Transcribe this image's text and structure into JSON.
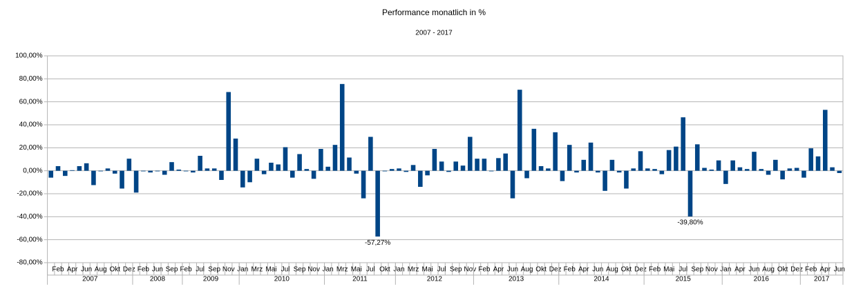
{
  "chart_data": {
    "type": "bar",
    "title": "Performance monatlich in %",
    "subtitle": "2007 - 2017",
    "color": "#004586",
    "negative_label_color": "#cc0000",
    "grid": true,
    "ylim": [
      -80,
      100
    ],
    "yticks": [
      {
        "value": -80,
        "label": "-80,00%"
      },
      {
        "value": -60,
        "label": "-60,00%"
      },
      {
        "value": -40,
        "label": "-40,00%"
      },
      {
        "value": -20,
        "label": "-20,00%"
      },
      {
        "value": 0,
        "label": "0,00%"
      },
      {
        "value": 20,
        "label": "20,00%"
      },
      {
        "value": 40,
        "label": "40,00%"
      },
      {
        "value": 60,
        "label": "60,00%"
      },
      {
        "value": 80,
        "label": "80,00%"
      },
      {
        "value": 100,
        "label": "100,00%"
      }
    ],
    "categories": [
      null,
      "Feb",
      null,
      "Apr",
      null,
      "Jun",
      null,
      "Aug",
      null,
      "Okt",
      null,
      "Dez",
      null,
      "Feb",
      null,
      "Jun",
      null,
      "Sep",
      null,
      "Feb",
      null,
      "Jul",
      null,
      "Sep",
      null,
      "Nov",
      null,
      "Jan",
      null,
      "Mrz",
      null,
      "Mai",
      null,
      "Jul",
      null,
      "Sep",
      null,
      "Nov",
      null,
      "Jan",
      null,
      "Mrz",
      null,
      "Mai",
      null,
      "Jul",
      null,
      "Okt",
      null,
      "Jan",
      null,
      "Mrz",
      null,
      "Mai",
      null,
      "Jul",
      null,
      "Sep",
      null,
      "Nov",
      null,
      "Feb",
      null,
      "Apr",
      null,
      "Jun",
      null,
      "Aug",
      null,
      "Okt",
      null,
      "Dez",
      null,
      "Feb",
      null,
      "Apr",
      null,
      "Jun",
      null,
      "Aug",
      null,
      "Okt",
      null,
      "Dez",
      null,
      "Feb",
      null,
      "Mai",
      null,
      "Jul",
      null,
      "Sep",
      null,
      "Nov",
      null,
      "Jan",
      null,
      "Apr",
      null,
      "Jun",
      null,
      "Aug",
      null,
      "Okt",
      null,
      "Dez",
      null,
      "Feb",
      null,
      "Apr",
      null,
      "Jun"
    ],
    "groups": [
      {
        "label": "2007",
        "size": 12
      },
      {
        "label": "2008",
        "size": 7
      },
      {
        "label": "2009",
        "size": 8
      },
      {
        "label": "2010",
        "size": 12
      },
      {
        "label": "2011",
        "size": 10
      },
      {
        "label": "2012",
        "size": 11
      },
      {
        "label": "2013",
        "size": 12
      },
      {
        "label": "2014",
        "size": 12
      },
      {
        "label": "2015",
        "size": 11
      },
      {
        "label": "2016",
        "size": 11
      },
      {
        "label": "2017",
        "size": 6
      }
    ],
    "values": [
      -6,
      4,
      -4.5,
      0.5,
      4,
      6.5,
      -12.5,
      -0.5,
      2,
      -2.5,
      -15.5,
      10.5,
      -19,
      -0.5,
      -1.5,
      -0.5,
      -3.5,
      7.5,
      1,
      -0.5,
      -1.5,
      13,
      2,
      2,
      -8,
      68.5,
      28,
      -14.5,
      -10,
      10.5,
      -3,
      7,
      5.5,
      20.5,
      -6,
      14.5,
      1.5,
      -7,
      19,
      3.5,
      22.5,
      75.5,
      11.5,
      -2.5,
      -24,
      29.5,
      -57.27,
      -0.5,
      1.5,
      2,
      -1,
      5,
      -14,
      -4,
      19,
      8,
      -1,
      8,
      4.5,
      29.5,
      10.5,
      10.5,
      -0.5,
      11,
      15,
      -24,
      70.5,
      -6.5,
      36.5,
      4,
      2,
      33.5,
      -9,
      22.5,
      -1.5,
      9.5,
      24.5,
      -1.5,
      -17.5,
      9.5,
      -1.5,
      -15.5,
      2,
      17,
      2,
      1.5,
      -3,
      18,
      21,
      46.5,
      -39.8,
      23,
      2.5,
      1,
      9,
      -11.5,
      9,
      3,
      1.5,
      16.5,
      1.5,
      -3.5,
      9.5,
      -7.5,
      2,
      2.5,
      -6,
      19.5,
      12.5,
      53,
      3,
      -2
    ],
    "value_labels": [
      null,
      null,
      null,
      null,
      null,
      null,
      null,
      null,
      null,
      null,
      null,
      null,
      null,
      null,
      null,
      null,
      null,
      null,
      null,
      null,
      null,
      null,
      null,
      null,
      null,
      null,
      null,
      null,
      null,
      null,
      null,
      null,
      null,
      null,
      null,
      null,
      null,
      null,
      null,
      null,
      null,
      null,
      null,
      null,
      null,
      null,
      "-57,27%",
      null,
      null,
      null,
      null,
      null,
      null,
      null,
      null,
      null,
      null,
      null,
      null,
      null,
      null,
      null,
      null,
      null,
      null,
      null,
      null,
      null,
      null,
      null,
      null,
      null,
      null,
      null,
      null,
      null,
      null,
      null,
      null,
      null,
      null,
      null,
      null,
      null,
      null,
      null,
      null,
      null,
      null,
      null,
      "-39,80%",
      null,
      null,
      null,
      null,
      null,
      null,
      null,
      null,
      null,
      null,
      null,
      null,
      null,
      null,
      null,
      null,
      null,
      null,
      null,
      null,
      null
    ]
  }
}
